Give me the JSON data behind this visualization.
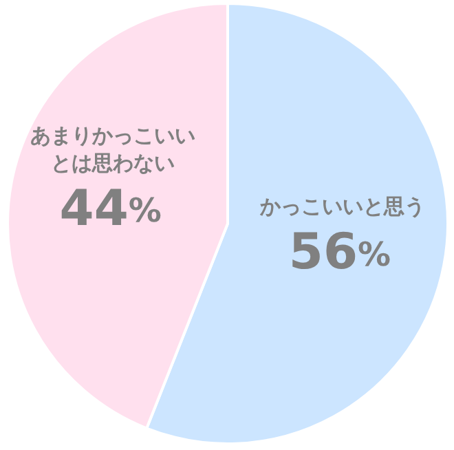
{
  "chart_data": {
    "type": "pie",
    "categories": [
      "かっこいいと思う",
      "あまりかっこいいとは思わない"
    ],
    "values": [
      56,
      44
    ],
    "colors": [
      "#cce5ff",
      "#ffe0ee"
    ],
    "value_labels": [
      "56%",
      "44%"
    ]
  }
}
